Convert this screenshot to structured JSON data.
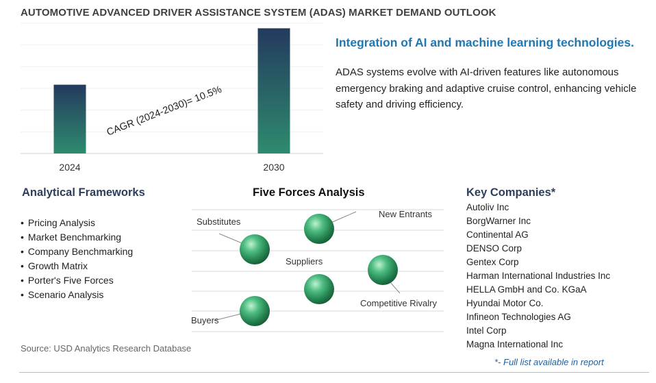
{
  "title": "AUTOMOTIVE ADVANCED DRIVER ASSISTANCE SYSTEM (ADAS) MARKET DEMAND OUTLOOK",
  "chart_data": {
    "type": "bar",
    "categories": [
      "2024",
      "2030"
    ],
    "values": [
      1.0,
      1.82
    ],
    "annotation": "CAGR (2024-2030)=  10.5%",
    "grid": true,
    "legend": "none",
    "colors": [
      "#2e8b6e",
      "#243a5e"
    ]
  },
  "highlight": {
    "title": "Integration of AI and machine learning technologies.",
    "description": "ADAS systems evolve with AI-driven features like autonomous emergency braking and adaptive cruise control, enhancing vehicle safety and driving efficiency."
  },
  "analytical_frameworks": {
    "heading": "Analytical Frameworks",
    "items": [
      "Pricing Analysis",
      "Market Benchmarking",
      "Company Benchmarking",
      "Growth Matrix",
      "Porter's Five Forces",
      "Scenario Analysis"
    ]
  },
  "five_forces": {
    "heading": "Five Forces Analysis",
    "forces": [
      "Substitutes",
      "New Entrants",
      "Suppliers",
      "Competitive Rivalry",
      "Buyers"
    ],
    "sphere_color": "#2e9e62"
  },
  "key_companies": {
    "heading": "Key Companies*",
    "items": [
      "Autoliv Inc",
      "BorgWarner Inc",
      "Continental AG",
      "DENSO Corp",
      "Gentex Corp",
      "Harman International Industries Inc",
      "HELLA GmbH and Co. KGaA",
      "Hyundai Motor Co.",
      "Infineon Technologies AG",
      "Intel Corp",
      "Magna International Inc"
    ],
    "note": "*- Full list available in report"
  },
  "source": "Source: USD Analytics Research Database"
}
